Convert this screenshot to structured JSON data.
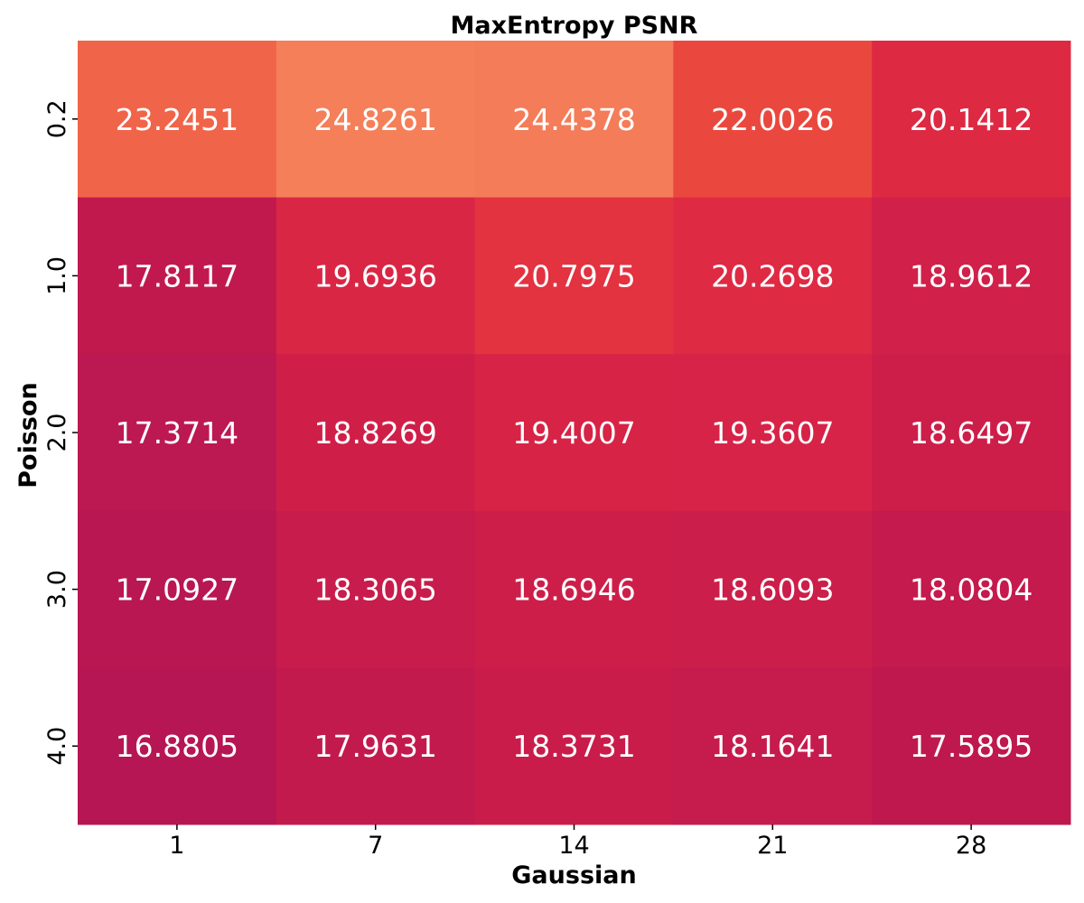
{
  "chart_data": {
    "type": "heatmap",
    "title": "MaxEntropy PSNR",
    "xlabel": "Gaussian",
    "ylabel": "Poisson",
    "x_categories": [
      "1",
      "7",
      "14",
      "21",
      "28"
    ],
    "y_categories": [
      "0.2",
      "1.0",
      "2.0",
      "3.0",
      "4.0"
    ],
    "values": [
      [
        23.2451,
        24.8261,
        24.4378,
        22.0026,
        20.1412
      ],
      [
        17.8117,
        19.6936,
        20.7975,
        20.2698,
        18.9612
      ],
      [
        17.3714,
        18.8269,
        19.4007,
        19.3607,
        18.6497
      ],
      [
        17.0927,
        18.3065,
        18.6946,
        18.6093,
        18.0804
      ],
      [
        16.8805,
        17.9631,
        18.3731,
        18.1641,
        17.5895
      ]
    ],
    "value_labels": [
      [
        "23.2451",
        "24.8261",
        "24.4378",
        "22.0026",
        "20.1412"
      ],
      [
        "17.8117",
        "19.6936",
        "20.7975",
        "20.2698",
        "18.9612"
      ],
      [
        "17.3714",
        "18.8269",
        "19.4007",
        "19.3607",
        "18.6497"
      ],
      [
        "17.0927",
        "18.3065",
        "18.6946",
        "18.6093",
        "18.0804"
      ],
      [
        "16.8805",
        "17.9631",
        "18.3731",
        "18.1641",
        "17.5895"
      ]
    ],
    "colorbar": false,
    "colormap": "rocket",
    "grid": false
  }
}
